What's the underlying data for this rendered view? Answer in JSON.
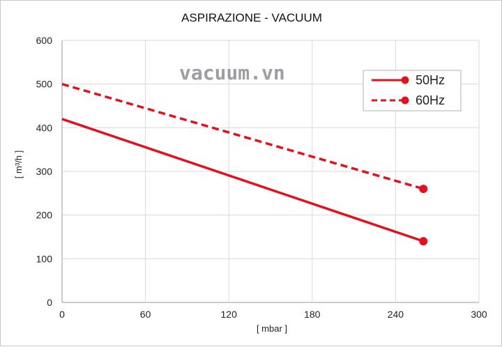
{
  "chart_data": {
    "type": "line",
    "title": "ASPIRAZIONE - VACUUM",
    "xlabel": "[ mbar ]",
    "ylabel": "[ m³/h ]",
    "xlim": [
      0,
      300
    ],
    "ylim": [
      0,
      600
    ],
    "xticks": [
      0,
      60,
      120,
      180,
      240,
      300
    ],
    "yticks": [
      0,
      100,
      200,
      300,
      400,
      500,
      600
    ],
    "grid": true,
    "legend_position": "top-right",
    "series": [
      {
        "name": "50Hz",
        "style": "solid",
        "color": "#e3101e",
        "x": [
          0,
          260
        ],
        "y": [
          420,
          140
        ],
        "end_marker": true
      },
      {
        "name": "60Hz",
        "style": "dashed",
        "color": "#e3101e",
        "x": [
          0,
          260
        ],
        "y": [
          500,
          260
        ],
        "end_marker": true
      }
    ]
  },
  "watermark": "vacuum.vn"
}
